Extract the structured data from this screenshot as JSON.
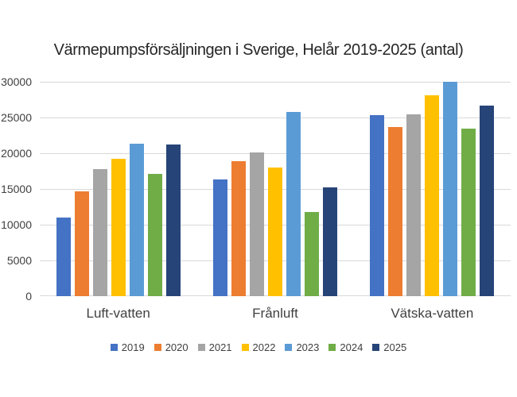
{
  "chart_data": {
    "type": "bar",
    "title": "Värmepumpsförsäljningen i Sverige, Helår 2019-2025 (antal)",
    "categories": [
      "Luft-vatten",
      "Frånluft",
      "Vätska-vatten"
    ],
    "series": [
      {
        "name": "2019",
        "color": "#4472C4",
        "values": [
          11000,
          16300,
          25300
        ]
      },
      {
        "name": "2020",
        "color": "#ED7D31",
        "values": [
          14700,
          18900,
          23700
        ]
      },
      {
        "name": "2021",
        "color": "#A5A5A5",
        "values": [
          17800,
          20100,
          25500
        ]
      },
      {
        "name": "2022",
        "color": "#FFC000",
        "values": [
          19200,
          18000,
          28100
        ]
      },
      {
        "name": "2023",
        "color": "#5B9BD5",
        "values": [
          21300,
          25800,
          30000
        ]
      },
      {
        "name": "2024",
        "color": "#70AD47",
        "values": [
          17100,
          11800,
          23500
        ]
      },
      {
        "name": "2025",
        "color": "#264478",
        "values": [
          21200,
          15200,
          26700
        ]
      }
    ],
    "ylim": [
      0,
      30000
    ],
    "ytick_step": 5000,
    "yticks": [
      "0",
      "5000",
      "10000",
      "15000",
      "20000",
      "25000",
      "30000"
    ],
    "grid": true,
    "legend_position": "bottom",
    "gridline_color": "#D9D9D9",
    "text_color": "#404040"
  }
}
